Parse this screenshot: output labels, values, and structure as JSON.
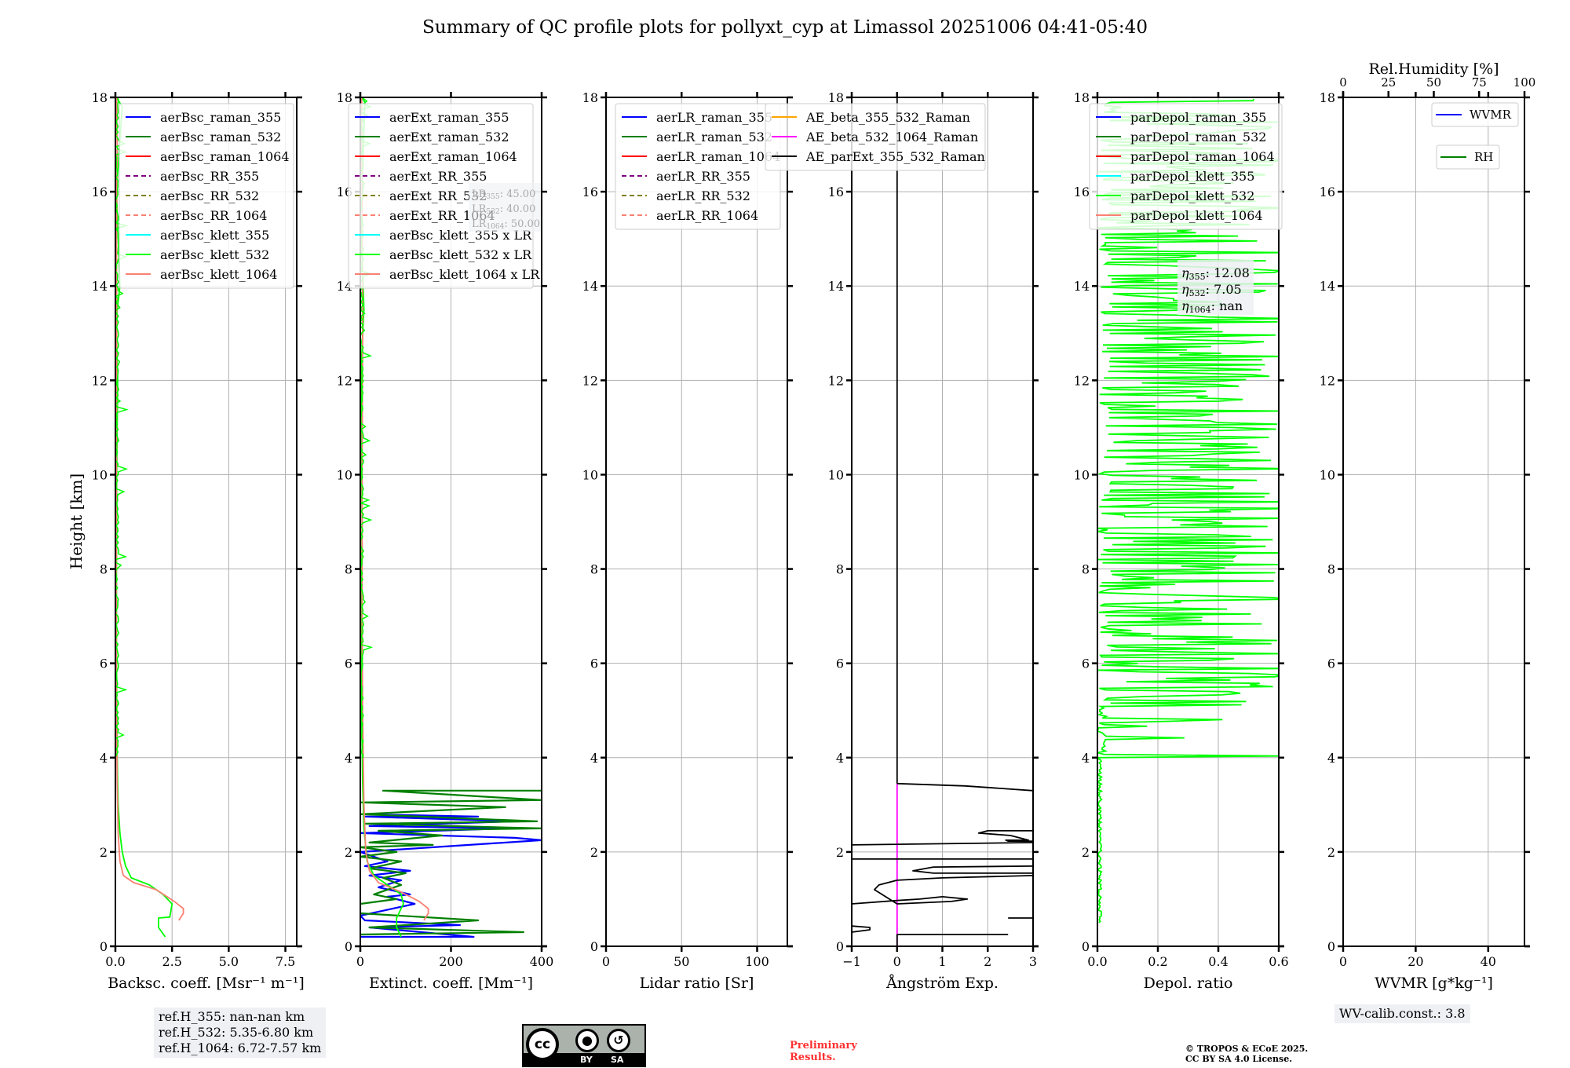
{
  "title": "Summary of QC profile plots for pollyxt_cyp at Limassol 20251006 04:41-05:40",
  "ylabel": "Height [km]",
  "colors": {
    "blue": "#0000ff",
    "green": "#008000",
    "red": "#ff0000",
    "purple": "#800080",
    "olive": "#808000",
    "salmon": "#fa8072",
    "cyan": "#00ffff",
    "lime": "#00ff00",
    "orange": "#ffa500",
    "magenta": "#ff00ff",
    "black": "#000000"
  },
  "chart_data": [
    {
      "type": "line",
      "id": "bsc",
      "xlabel": "Backsc. coeff. [Msr⁻¹ m⁻¹]",
      "ylabel": "Height [km]",
      "xlim": [
        0,
        8
      ],
      "ylim": [
        0,
        18
      ],
      "xticks": [
        0,
        2.5,
        5,
        7.5
      ],
      "xtick_labels": [
        "0.0",
        "2.5",
        "5.0",
        "7.5"
      ],
      "yticks": [
        0,
        2,
        4,
        6,
        8,
        10,
        12,
        14,
        16,
        18
      ],
      "grid": true,
      "legend_placement": "top-right",
      "legend": [
        {
          "label": "aerBsc_raman_355",
          "color": "blue",
          "style": "solid"
        },
        {
          "label": "aerBsc_raman_532",
          "color": "green",
          "style": "solid"
        },
        {
          "label": "aerBsc_raman_1064",
          "color": "red",
          "style": "solid"
        },
        {
          "label": "aerBsc_RR_355",
          "color": "purple",
          "style": "dashed"
        },
        {
          "label": "aerBsc_RR_532",
          "color": "olive",
          "style": "dashed"
        },
        {
          "label": "aerBsc_RR_1064",
          "color": "salmon",
          "style": "dashed"
        },
        {
          "label": "aerBsc_klett_355",
          "color": "cyan",
          "style": "solid"
        },
        {
          "label": "aerBsc_klett_532",
          "color": "lime",
          "style": "solid"
        },
        {
          "label": "aerBsc_klett_1064",
          "color": "salmon",
          "style": "solid"
        }
      ],
      "series": [
        {
          "name": "aerBsc_klett_532",
          "color": "lime",
          "x": [
            2.2,
            1.9,
            1.9,
            2.4,
            2.5,
            2.1,
            1.5,
            0.7,
            0.45,
            0.3,
            0.2,
            0.12,
            0.08,
            0.05,
            0.05,
            0.06,
            0.1,
            0.05,
            0.08,
            0.2,
            0.05,
            0.3,
            0.05
          ],
          "y": [
            0.2,
            0.4,
            0.6,
            0.62,
            0.9,
            1.1,
            1.3,
            1.45,
            1.7,
            2.0,
            2.4,
            3.0,
            4.0,
            6.0,
            8.0,
            10.0,
            12.0,
            13.0,
            13.5,
            14.0,
            16.0,
            17.8,
            18.0
          ]
        },
        {
          "name": "aerBsc_klett_1064",
          "color": "salmon",
          "x": [
            2.8,
            3.0,
            3.0,
            2.6,
            1.8,
            0.8,
            0.35,
            0.2,
            0.12,
            0.08,
            0.05,
            0.04,
            0.04,
            0.05,
            0.06,
            0.05,
            0.08,
            0.05
          ],
          "y": [
            0.55,
            0.7,
            0.8,
            0.95,
            1.2,
            1.35,
            1.5,
            1.8,
            2.4,
            3.5,
            5.0,
            7.0,
            9.0,
            11.0,
            13.0,
            15.0,
            17.0,
            18.0
          ]
        }
      ]
    },
    {
      "type": "line",
      "id": "ext",
      "xlabel": "Extinct. coeff. [Mm⁻¹]",
      "xlim": [
        0,
        400
      ],
      "ylim": [
        0,
        18
      ],
      "xticks": [
        0,
        200,
        400
      ],
      "xtick_labels": [
        "0",
        "200",
        "400"
      ],
      "yticks": [
        0,
        2,
        4,
        6,
        8,
        10,
        12,
        14,
        16,
        18
      ],
      "grid": true,
      "legend_placement": "top-right",
      "legend": [
        {
          "label": "aerExt_raman_355",
          "color": "blue",
          "style": "solid"
        },
        {
          "label": "aerExt_raman_532",
          "color": "green",
          "style": "solid"
        },
        {
          "label": "aerExt_raman_1064",
          "color": "red",
          "style": "solid"
        },
        {
          "label": "aerExt_RR_355",
          "color": "purple",
          "style": "dashed"
        },
        {
          "label": "aerExt_RR_532",
          "color": "olive",
          "style": "dashed"
        },
        {
          "label": "aerExt_RR_1064",
          "color": "salmon",
          "style": "dashed"
        },
        {
          "label": "aerBsc_klett_355 x LR",
          "color": "cyan",
          "style": "solid"
        },
        {
          "label": "aerBsc_klett_532 x LR",
          "color": "lime",
          "style": "solid"
        },
        {
          "label": "aerBsc_klett_1064 x LR",
          "color": "salmon",
          "style": "solid"
        }
      ],
      "annotation": [
        "LR355: 45.00",
        "LR532: 40.00",
        "LR1064: 50.00"
      ],
      "series": [
        {
          "name": "aerExt_raman_355",
          "color": "blue",
          "x": [
            0,
            250,
            20,
            220,
            10,
            0,
            120,
            60,
            110,
            40,
            90,
            20,
            110,
            10,
            60,
            0,
            400,
            340,
            0,
            330,
            20,
            340,
            10,
            260,
            0
          ],
          "y": [
            0.2,
            0.2,
            0.4,
            0.45,
            0.55,
            0.65,
            0.9,
            1.05,
            1.1,
            1.25,
            1.4,
            1.5,
            1.6,
            1.7,
            1.8,
            2.0,
            2.25,
            2.3,
            2.4,
            2.5,
            2.55,
            2.65,
            2.75,
            2.75,
            2.8
          ]
        },
        {
          "name": "aerExt_raman_532",
          "color": "green",
          "x": [
            0,
            360,
            20,
            260,
            0,
            0,
            80,
            30,
            90,
            50,
            100,
            20,
            90,
            0,
            80,
            0,
            160,
            20,
            180,
            40,
            400,
            10,
            390,
            0,
            320,
            0,
            400,
            50,
            400
          ],
          "y": [
            0.25,
            0.3,
            0.4,
            0.55,
            0.7,
            0.9,
            1.0,
            1.1,
            1.3,
            1.45,
            1.55,
            1.65,
            1.8,
            1.9,
            2.0,
            2.1,
            2.15,
            2.2,
            2.35,
            2.45,
            2.5,
            2.6,
            2.65,
            2.8,
            2.95,
            3.05,
            3.1,
            3.3,
            3.3
          ]
        },
        {
          "name": "aerBsc_klett_532 x LR",
          "color": "lime",
          "x": [
            90,
            80,
            80,
            95,
            90,
            60,
            30,
            15,
            8,
            5,
            3,
            2,
            4,
            2,
            3,
            8,
            3,
            5,
            10,
            3
          ],
          "y": [
            0.2,
            0.4,
            0.6,
            0.9,
            1.1,
            1.3,
            1.5,
            1.8,
            2.5,
            3.5,
            5.0,
            7.0,
            9.0,
            11.0,
            12.5,
            13.5,
            15.0,
            16.5,
            17.9,
            18.0
          ]
        },
        {
          "name": "aerBsc_klett_1064 x LR",
          "color": "salmon",
          "x": [
            140,
            150,
            150,
            130,
            90,
            40,
            20,
            12,
            8,
            5,
            4,
            4,
            5,
            4,
            3
          ],
          "y": [
            0.55,
            0.7,
            0.8,
            0.95,
            1.15,
            1.35,
            1.6,
            2.0,
            3.0,
            5.0,
            7.0,
            10.0,
            13.0,
            16.0,
            18.0
          ]
        }
      ]
    },
    {
      "type": "line",
      "id": "lr",
      "xlabel": "Lidar ratio [Sr]",
      "xlim": [
        0,
        120
      ],
      "ylim": [
        0,
        18
      ],
      "xticks": [
        0,
        50,
        100
      ],
      "xtick_labels": [
        "0",
        "50",
        "100"
      ],
      "yticks": [
        0,
        2,
        4,
        6,
        8,
        10,
        12,
        14,
        16,
        18
      ],
      "grid": true,
      "legend_placement": "top-right",
      "legend": [
        {
          "label": "aerLR_raman_355",
          "color": "blue",
          "style": "solid"
        },
        {
          "label": "aerLR_raman_532",
          "color": "green",
          "style": "solid"
        },
        {
          "label": "aerLR_raman_1064",
          "color": "red",
          "style": "solid"
        },
        {
          "label": "aerLR_RR_355",
          "color": "purple",
          "style": "dashed"
        },
        {
          "label": "aerLR_RR_532",
          "color": "olive",
          "style": "dashed"
        },
        {
          "label": "aerLR_RR_1064",
          "color": "salmon",
          "style": "dashed"
        }
      ],
      "series": []
    },
    {
      "type": "line",
      "id": "ae",
      "xlabel": "Ångström Exp.",
      "xlim": [
        -1,
        3
      ],
      "ylim": [
        0,
        18
      ],
      "xticks": [
        -1,
        0,
        1,
        2,
        3
      ],
      "xtick_labels": [
        "−1",
        "0",
        "1",
        "2",
        "3"
      ],
      "yticks": [
        0,
        2,
        4,
        6,
        8,
        10,
        12,
        14,
        16,
        18
      ],
      "grid": true,
      "legend_placement": "top-right",
      "legend": [
        {
          "label": "AE_beta_355_532_Raman",
          "color": "orange",
          "style": "solid"
        },
        {
          "label": "AE_beta_532_1064_Raman",
          "color": "magenta",
          "style": "solid"
        },
        {
          "label": "AE_parExt_355_532_Raman",
          "color": "black",
          "style": "solid"
        }
      ],
      "series": [
        {
          "name": "AE_beta_532_1064_Raman",
          "color": "magenta",
          "x": [
            0,
            0
          ],
          "y": [
            0,
            3.45
          ]
        },
        {
          "name": "AE_parExt_355_532_Raman",
          "color": "black",
          "x": [
            0,
            0,
            2.45,
            null,
            3,
            2.45,
            null,
            -1,
            -0.6,
            -0.6,
            -1,
            null,
            -1,
            0,
            0.5,
            1.0,
            1.55,
            1.2,
            0,
            -0.5,
            -0.4,
            0,
            1.0,
            3,
            null,
            3,
            0.8,
            0.35,
            0.8,
            3,
            null,
            -1,
            3,
            null,
            -1,
            3,
            null,
            3,
            2.45,
            2.4,
            2.9,
            2.5,
            1.8,
            2.0,
            3,
            null,
            0,
            0,
            1.5,
            3,
            null,
            0,
            0
          ],
          "y": [
            0,
            0.25,
            0.25,
            null,
            0.6,
            0.6,
            null,
            0.3,
            0.35,
            0.4,
            0.43,
            null,
            0.9,
            0.97,
            1.0,
            1.05,
            1.0,
            0.95,
            0.9,
            1.2,
            1.3,
            1.4,
            1.45,
            1.5,
            null,
            1.55,
            1.55,
            1.6,
            1.68,
            1.7,
            null,
            1.85,
            1.85,
            null,
            2.15,
            2.2,
            null,
            2.23,
            2.23,
            2.25,
            2.25,
            2.35,
            2.4,
            2.45,
            2.45,
            null,
            3.45,
            3.45,
            3.4,
            3.3,
            null,
            3.45,
            18
          ]
        }
      ]
    },
    {
      "type": "line",
      "id": "depol",
      "xlabel": "Depol. ratio",
      "xlim": [
        0,
        0.6
      ],
      "ylim": [
        0,
        18
      ],
      "xticks": [
        0,
        0.2,
        0.4,
        0.6
      ],
      "xtick_labels": [
        "0.0",
        "0.2",
        "0.4",
        "0.6"
      ],
      "yticks": [
        0,
        2,
        4,
        6,
        8,
        10,
        12,
        14,
        16,
        18
      ],
      "grid": true,
      "legend_placement": "top-right",
      "legend": [
        {
          "label": "parDepol_raman_355",
          "color": "blue",
          "style": "solid"
        },
        {
          "label": "parDepol_raman_532",
          "color": "green",
          "style": "solid"
        },
        {
          "label": "parDepol_raman_1064",
          "color": "red",
          "style": "solid"
        },
        {
          "label": "parDepol_klett_355",
          "color": "cyan",
          "style": "solid"
        },
        {
          "label": "parDepol_klett_532",
          "color": "lime",
          "style": "solid"
        },
        {
          "label": "parDepol_klett_1064",
          "color": "salmon",
          "style": "solid"
        }
      ],
      "annotation": [
        "η355: 12.08",
        "η532: 7.05",
        "η1064: nan"
      ],
      "series": [
        {
          "name": "parDepol_klett_532",
          "color": "lime",
          "style": "noisy",
          "note": "noisy profile: near 0 below 4 km, strong spikes to 0.6 from ~4 to 18 km",
          "x_range": [
            0,
            0.6
          ],
          "y_range": [
            0.5,
            18
          ]
        }
      ]
    },
    {
      "type": "line",
      "id": "wv",
      "xlabel": "WVMR [g*kg⁻¹]",
      "xlim": [
        0,
        50
      ],
      "ylim": [
        0,
        18
      ],
      "xticks": [
        0,
        20,
        40
      ],
      "xtick_labels": [
        "0",
        "20",
        "40"
      ],
      "yticks": [
        0,
        2,
        4,
        6,
        8,
        10,
        12,
        14,
        16,
        18
      ],
      "x2label": "Rel.Humidity [%]",
      "x2lim": [
        0,
        100
      ],
      "x2ticks": [
        0,
        25,
        50,
        75,
        100
      ],
      "x2tick_labels": [
        "0",
        "25",
        "50",
        "75",
        "100"
      ],
      "grid": true,
      "legend_placement": "top-right",
      "legend": [
        {
          "label": "WVMR",
          "color": "blue",
          "style": "solid"
        },
        {
          "label": "RH",
          "color": "green",
          "style": "solid"
        }
      ],
      "series": []
    }
  ],
  "footer": {
    "refH": [
      "ref.H_355: nan-nan km",
      "ref.H_532: 5.35-6.80 km",
      "ref.H_1064: 6.72-7.57 km"
    ],
    "wv_calib": "WV-calib.const.: 3.8",
    "prelim": [
      "Preliminary",
      "Results."
    ],
    "copyright": [
      "© TROPOS & ECoE 2025.",
      "CC BY SA 4.0 License."
    ],
    "cc_badge": {
      "cc": "cc",
      "by": "BY",
      "sa": "SA"
    }
  }
}
